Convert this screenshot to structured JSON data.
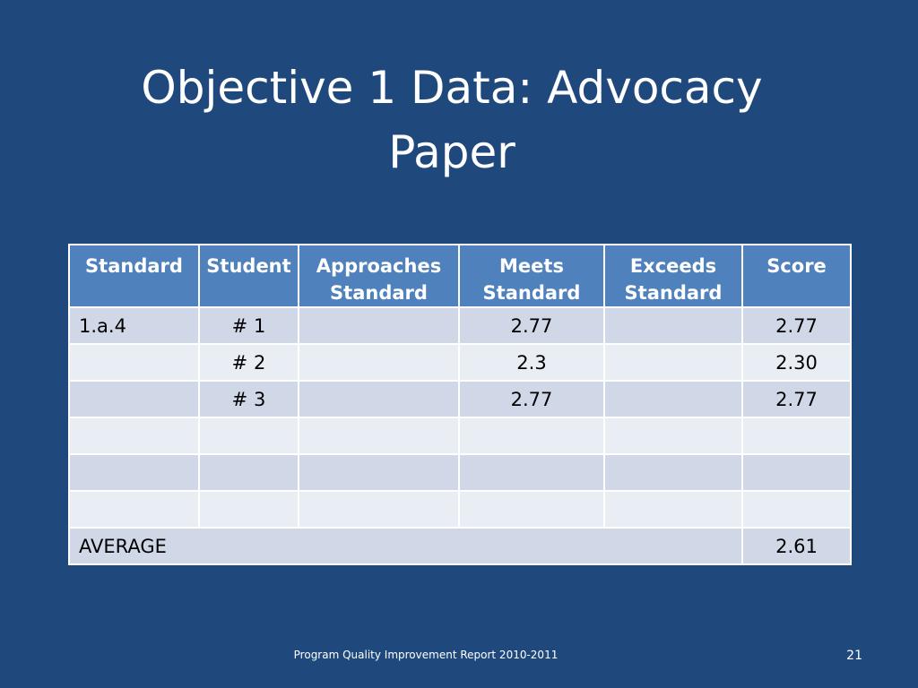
{
  "slide": {
    "title_line1": "Objective 1 Data: Advocacy",
    "title_line2": "Paper"
  },
  "table": {
    "headers": [
      {
        "line1": "Standard",
        "line2": ""
      },
      {
        "line1": "Student",
        "line2": ""
      },
      {
        "line1": "Approaches",
        "line2": "Standard"
      },
      {
        "line1": "Meets",
        "line2": "Standard"
      },
      {
        "line1": "Exceeds",
        "line2": "Standard"
      },
      {
        "line1": "Score",
        "line2": ""
      }
    ],
    "rows": [
      [
        "1.a.4",
        "# 1",
        "",
        "2.77",
        "",
        "2.77"
      ],
      [
        "",
        "# 2",
        "",
        "2.3",
        "",
        "2.30"
      ],
      [
        "",
        "# 3",
        "",
        "2.77",
        "",
        "2.77"
      ],
      [
        "",
        "",
        "",
        "",
        "",
        ""
      ],
      [
        "",
        "",
        "",
        "",
        "",
        ""
      ],
      [
        "",
        "",
        "",
        "",
        "",
        ""
      ]
    ],
    "average_label": "AVERAGE",
    "average_value": "2.61"
  },
  "footer": {
    "text": "Program Quality Improvement Report 2010-2011",
    "page_number": "21"
  },
  "colors": {
    "background": "#1f497d",
    "header_fill": "#4f81bd",
    "row_dark": "#d0d8e8",
    "row_light": "#e9edf4"
  }
}
